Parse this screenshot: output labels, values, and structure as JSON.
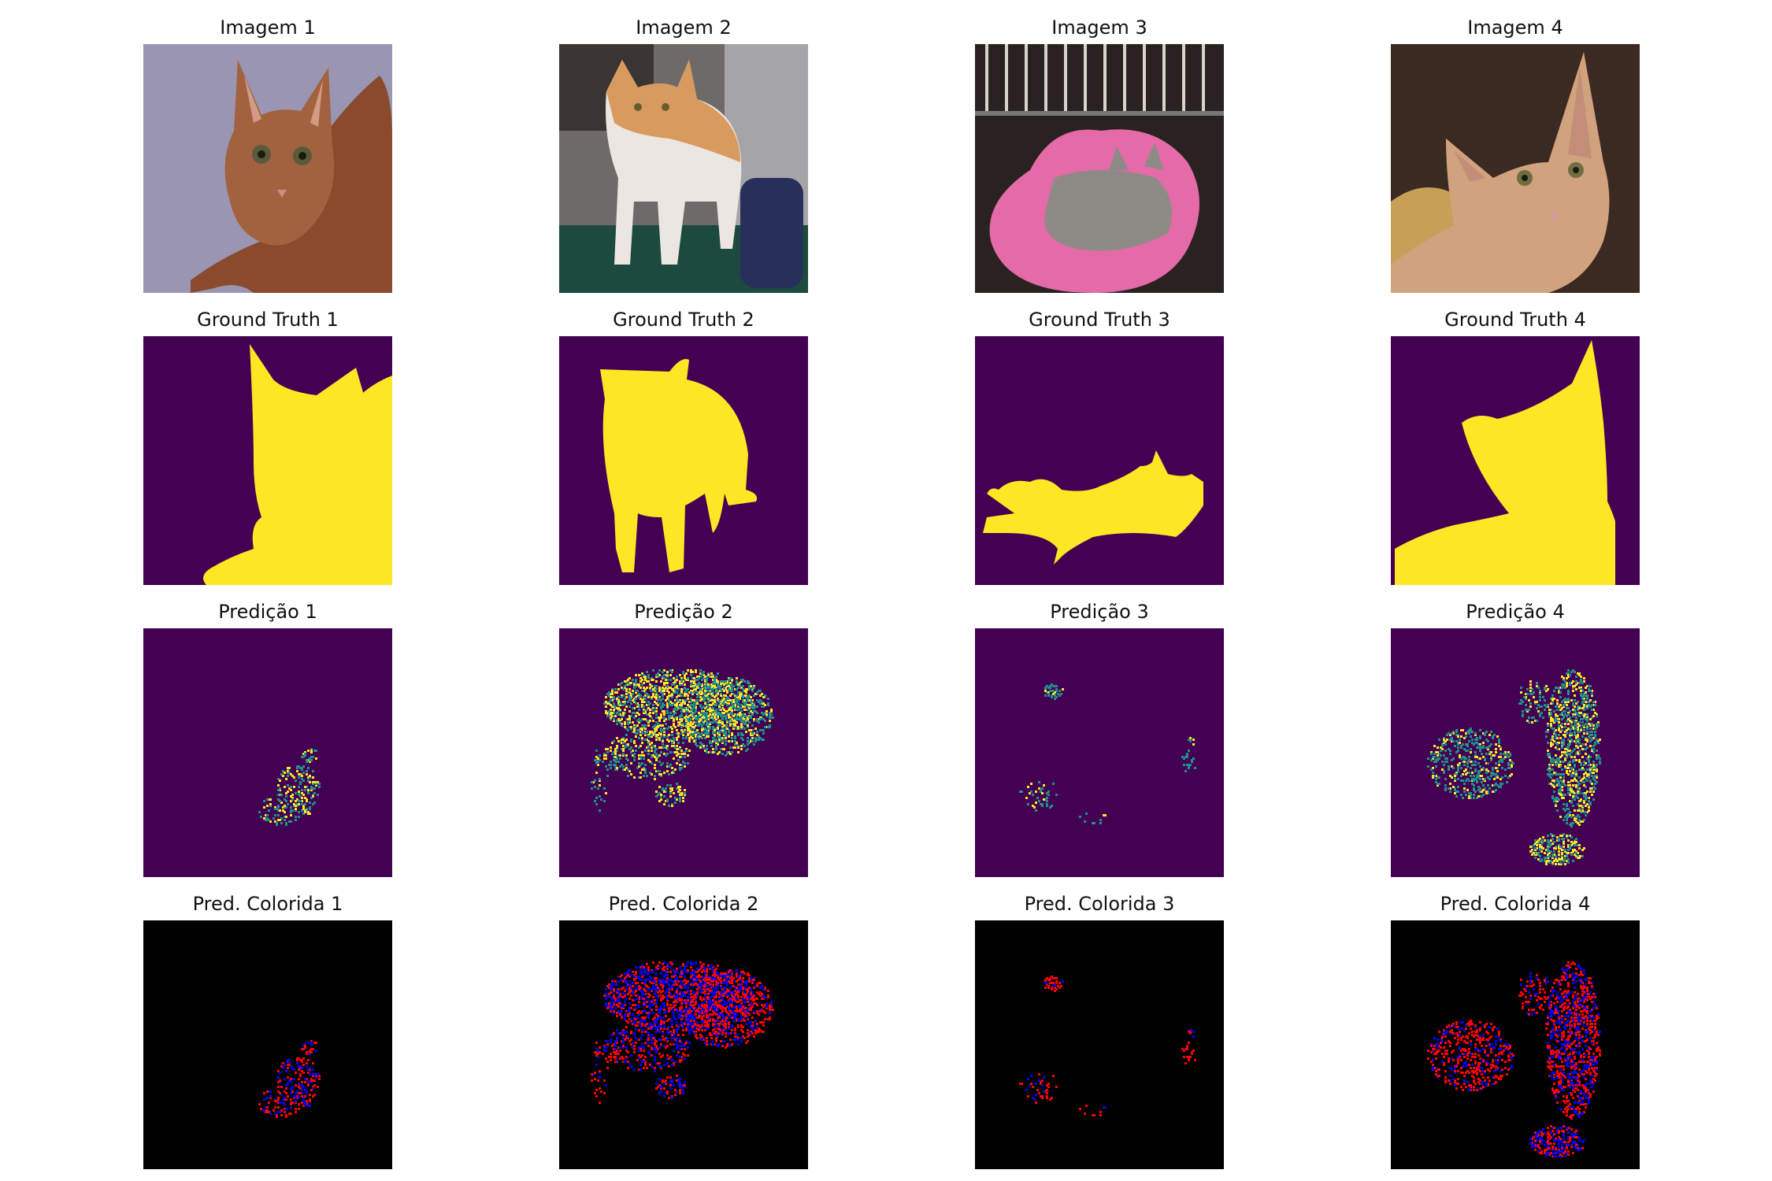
{
  "figure": {
    "type": "image-grid",
    "rows": 4,
    "cols": 4
  },
  "chart_data": {
    "type": "image-grid",
    "rows": [
      {
        "row_kind": "image",
        "titles": [
          "Imagem 1",
          "Imagem 2",
          "Imagem 3",
          "Imagem 4"
        ]
      },
      {
        "row_kind": "ground_truth",
        "titles": [
          "Ground Truth 1",
          "Ground Truth 2",
          "Ground Truth 3",
          "Ground Truth 4"
        ]
      },
      {
        "row_kind": "prediction",
        "titles": [
          "Predição 1",
          "Predição 2",
          "Predição 3",
          "Predição 4"
        ]
      },
      {
        "row_kind": "colored_prediction",
        "titles": [
          "Pred. Colorida 1",
          "Pred. Colorida 2",
          "Pred. Colorida 3",
          "Pred. Colorida 4"
        ]
      }
    ],
    "colormap": {
      "background": "#440154",
      "middle": "#21918c",
      "foreground": "#fde725"
    },
    "colored_palette": {
      "background": "#000000",
      "class_a": "#ff0000",
      "class_b": "#0000ff"
    },
    "axes": "off"
  }
}
